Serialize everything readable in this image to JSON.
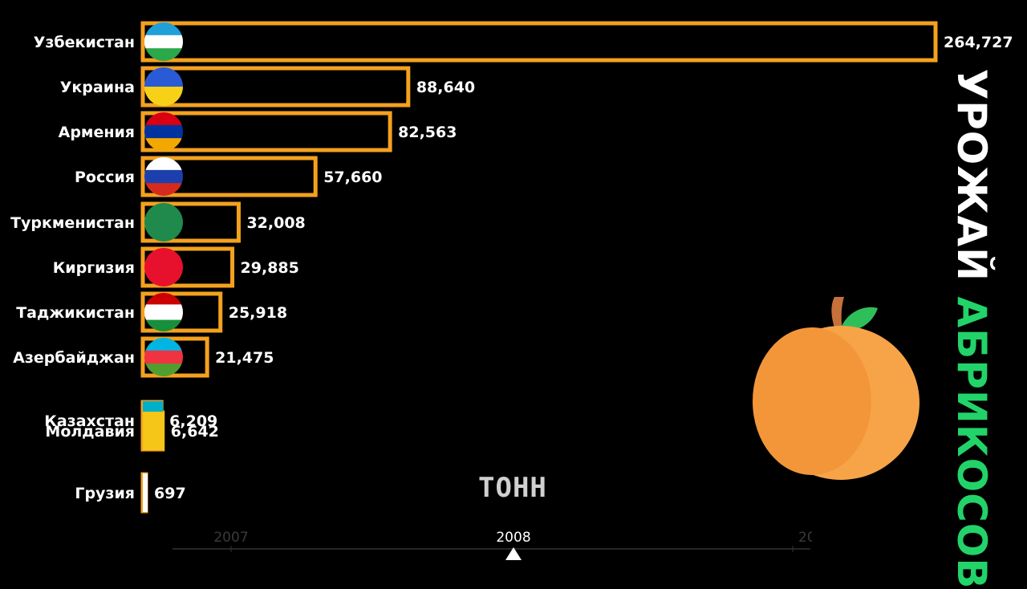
{
  "chart_data": {
    "type": "bar",
    "orientation": "horizontal",
    "categories": [
      "Узбекистан",
      "Украина",
      "Армения",
      "Россия",
      "Туркменистан",
      "Киргизия",
      "Таджикистан",
      "Азербайджан",
      "Казахстан",
      "Молдавия",
      "Грузия"
    ],
    "values": [
      264727,
      88640,
      82563,
      57660,
      32008,
      29885,
      25918,
      21475,
      6209,
      6642,
      697
    ],
    "value_labels": [
      "264,727",
      "88,640",
      "82,563",
      "57,660",
      "32,008",
      "29,885",
      "25,918",
      "21,475",
      "6,209",
      "6,642",
      "697"
    ],
    "xlim": [
      0,
      264727
    ],
    "bar_color": "#f4a11e",
    "unit_label": "ТОНН",
    "side_title": [
      "УРОЖАЙ",
      "АБРИКОСОВ"
    ]
  },
  "timeline": {
    "years": [
      "2007",
      "2008",
      "200"
    ],
    "current_year": "2008"
  },
  "colors": {
    "accent_green": "#22d36a",
    "apricot": "#f3963a",
    "leaf": "#2fbf5a"
  }
}
